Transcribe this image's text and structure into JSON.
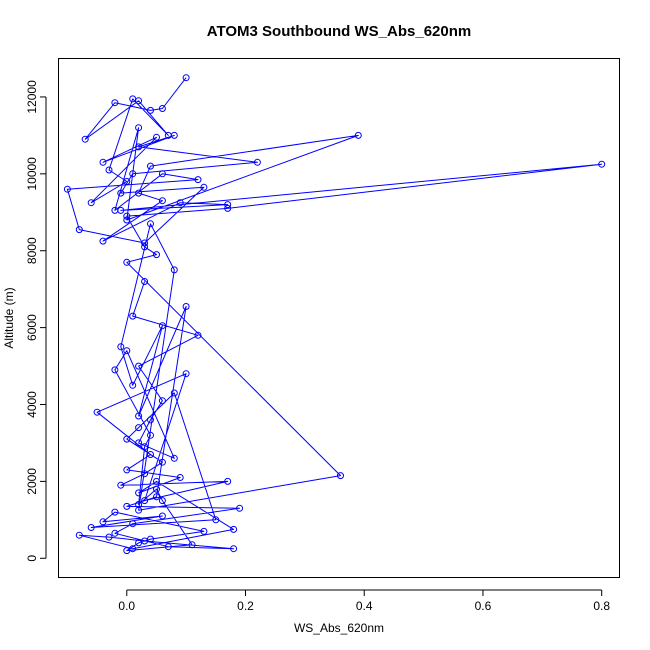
{
  "chart_data": {
    "type": "line",
    "title": "ATOM3 Southbound WS_Abs_620nm",
    "xlabel": "WS_Abs_620nm",
    "ylabel": "Altitude (m)",
    "xlim": [
      -0.115,
      0.83
    ],
    "ylim": [
      -500,
      13000
    ],
    "x_ticks": [
      0.0,
      0.2,
      0.4,
      0.6,
      0.8
    ],
    "x_tick_labels": [
      "0.0",
      "0.2",
      "0.4",
      "0.6",
      "0.8"
    ],
    "y_ticks": [
      0,
      2000,
      4000,
      6000,
      8000,
      10000,
      12000
    ],
    "y_tick_labels": [
      "0",
      "2000",
      "4000",
      "6000",
      "8000",
      "10000",
      "12000"
    ],
    "grid": false,
    "legend": "none",
    "marker": "open-circle",
    "color": "#0000ff",
    "series": [
      {
        "x": [
          0.1,
          0.06,
          0.04,
          -0.02,
          -0.07,
          0.02,
          0.07,
          0.01,
          -0.03,
          0.0,
          -0.06,
          0.05,
          -0.04,
          0.08,
          0.02,
          0.22,
          0.01,
          -0.01,
          0.13,
          0.03,
          -0.08,
          -0.1,
          0.12,
          0.06,
          -0.02,
          0.02,
          0.0,
          0.39,
          0.04,
          0.02,
          0.06,
          -0.04,
          0.09,
          0.17,
          -0.01,
          0.8,
          0.17,
          0.0,
          0.03,
          0.05,
          0.0,
          0.36,
          0.02,
          0.08,
          0.04,
          -0.01,
          0.01,
          0.06,
          0.02,
          0.1,
          0.05,
          0.0,
          0.19,
          0.01,
          -0.02,
          0.07,
          0.18,
          0.03,
          -0.03,
          -0.08,
          0.01,
          0.18,
          0.05,
          0.02,
          0.09,
          0.0,
          0.04,
          -0.05,
          0.1,
          0.03,
          0.17,
          -0.01,
          0.03,
          0.06,
          0.0,
          0.02,
          0.08,
          0.15,
          -0.06,
          0.06,
          -0.04,
          -0.02,
          0.13,
          0.04,
          0.02,
          0.0,
          0.11,
          0.06,
          0.05,
          0.02,
          0.03,
          0.04,
          -0.02,
          0.0,
          0.08,
          0.02,
          0.04,
          0.06,
          0.02,
          0.12,
          0.01,
          0.03
        ],
        "y": [
          12500,
          11700,
          11650,
          11850,
          10900,
          11900,
          11000,
          11950,
          10100,
          9800,
          9250,
          10950,
          10300,
          11000,
          10700,
          10300,
          10000,
          9500,
          9650,
          8200,
          8550,
          9600,
          9850,
          10000,
          9050,
          11200,
          8800,
          11000,
          10200,
          9500,
          9300,
          8250,
          9250,
          9200,
          9050,
          10250,
          9100,
          8900,
          8100,
          7900,
          7700,
          2150,
          1250,
          7500,
          8700,
          5500,
          4500,
          6050,
          3700,
          6550,
          1600,
          1350,
          1300,
          900,
          650,
          300,
          250,
          450,
          550,
          600,
          250,
          750,
          2000,
          1700,
          2100,
          2300,
          2700,
          3800,
          4800,
          1500,
          2000,
          1900,
          2200,
          2500,
          3100,
          3400,
          4300,
          1000,
          800,
          1100,
          950,
          1200,
          700,
          500,
          400,
          200,
          350,
          1500,
          1800,
          1400,
          2900,
          3200,
          4900,
          5400,
          2600,
          3000,
          3600,
          4100,
          5000,
          5800,
          6300,
          7200
        ]
      }
    ]
  }
}
